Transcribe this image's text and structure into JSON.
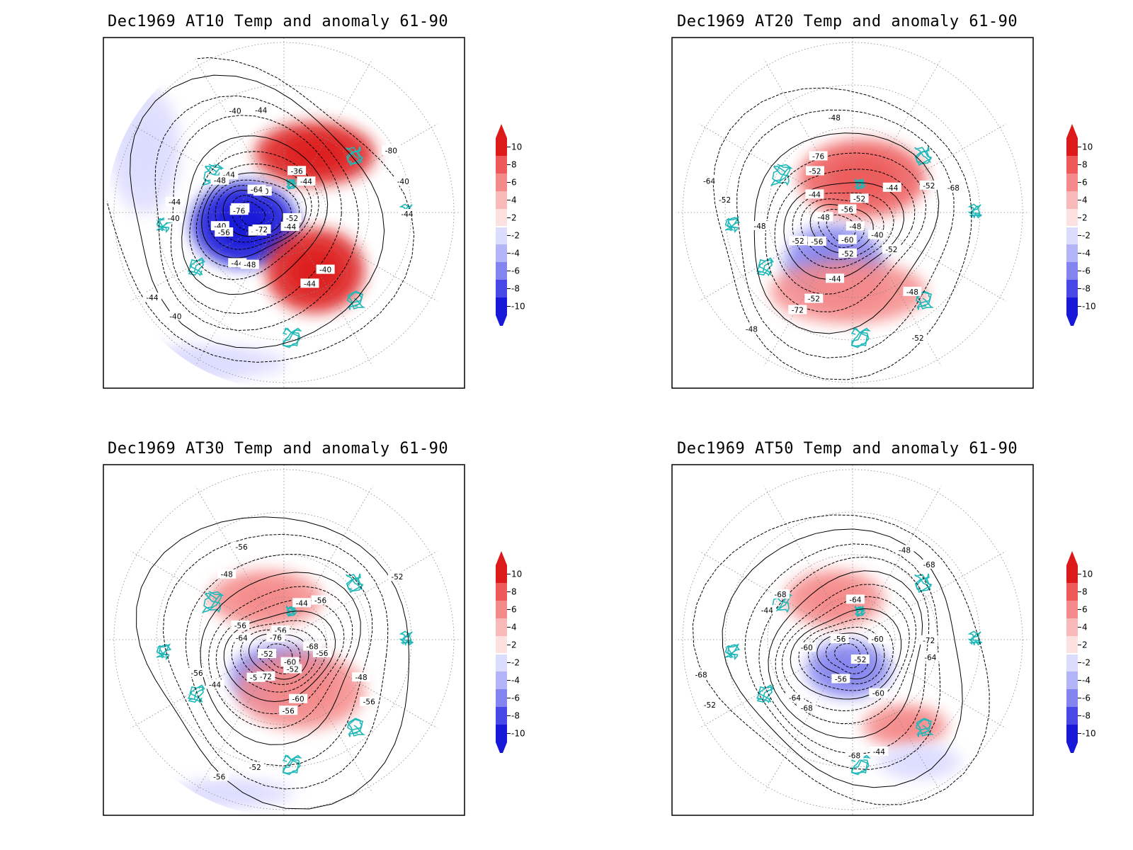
{
  "panels": [
    {
      "title": "Dec1969 AT10 Temp and anomaly 61-90",
      "contour_labels": [
        "-44",
        "-44",
        "-44",
        "-44",
        "-44",
        "-44",
        "-44",
        "-44",
        "-44",
        "-40",
        "-40",
        "-40",
        "-40",
        "-40",
        "-40",
        "-40",
        "-40",
        "-40",
        "-36",
        "-48",
        "-48",
        "-52",
        "-56",
        "-64",
        "-72",
        "-76",
        "-80"
      ],
      "anomaly_features": [
        {
          "sign": "cold",
          "level": -10
        },
        {
          "sign": "warm",
          "level": 10
        },
        {
          "sign": "warm",
          "level": 10
        },
        {
          "sign": "cold",
          "level": -2
        },
        {
          "sign": "cold",
          "level": -2
        }
      ]
    },
    {
      "title": "Dec1969 AT20 Temp and anomaly 61-90",
      "contour_labels": [
        "-52",
        "-52",
        "-52",
        "-52",
        "-52",
        "-52",
        "-52",
        "-52",
        "-52",
        "-48",
        "-48",
        "-48",
        "-48",
        "-48",
        "-48",
        "-44",
        "-44",
        "-44",
        "-40",
        "-56",
        "-56",
        "-60",
        "-64",
        "-68",
        "-72",
        "-76"
      ],
      "anomaly_features": [
        {
          "sign": "cold",
          "level": -6
        },
        {
          "sign": "warm",
          "level": 8
        },
        {
          "sign": "warm",
          "level": 6
        }
      ]
    },
    {
      "title": "Dec1969 AT30 Temp and anomaly 61-90",
      "contour_labels": [
        "-56",
        "-56",
        "-56",
        "-56",
        "-56",
        "-56",
        "-56",
        "-56",
        "-56",
        "-56",
        "-52",
        "-52",
        "-52",
        "-52",
        "-48",
        "-48",
        "-44",
        "-44",
        "-60",
        "-64",
        "-68",
        "-72",
        "-76",
        "-60"
      ],
      "anomaly_features": [
        {
          "sign": "cold",
          "level": -6
        },
        {
          "sign": "warm",
          "level": 6
        },
        {
          "sign": "warm",
          "level": 6
        },
        {
          "sign": "cold",
          "level": -2
        }
      ]
    },
    {
      "title": "Dec1969 AT50 Temp and anomaly 61-90",
      "contour_labels": [
        "-68",
        "-68",
        "-68",
        "-68",
        "-64",
        "-64",
        "-64",
        "-60",
        "-60",
        "-60",
        "-56",
        "-56",
        "-52",
        "-52",
        "-48",
        "-44",
        "-44",
        "-72",
        "-68"
      ],
      "anomaly_features": [
        {
          "sign": "cold",
          "level": -6
        },
        {
          "sign": "warm",
          "level": 6
        },
        {
          "sign": "warm",
          "level": 6
        },
        {
          "sign": "cold",
          "level": -2
        }
      ]
    }
  ],
  "colorbar": {
    "labels": [
      "10",
      "8",
      "6",
      "4",
      "2",
      "-2",
      "-4",
      "-6",
      "-8",
      "-10"
    ],
    "colors": [
      "#dd1a1a",
      "#ee5a5a",
      "#f58a8a",
      "#f9b9b9",
      "#fde0e0",
      "#ffffff",
      "#dcdcff",
      "#b4b4f8",
      "#8484f0",
      "#4848e6",
      "#1818d8"
    ]
  }
}
